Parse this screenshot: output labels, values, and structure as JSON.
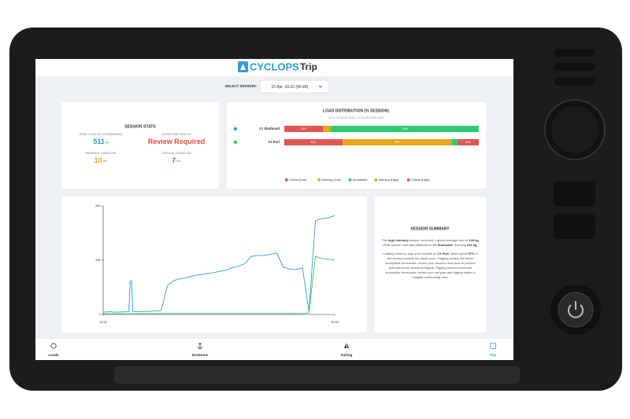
{
  "header": {
    "logo": "CYCLOPS",
    "title": "Trip"
  },
  "session_select": {
    "label": "SELECT SESSION:",
    "value": "10 Apr, 10:22 (40 kB)"
  },
  "stats": {
    "title": "SESSION STATS",
    "items": [
      {
        "label": "PEAK LOAD (V1 STARBOARD)",
        "value": 511,
        "unit": "kg",
        "color": "#2a9fd6"
      },
      {
        "label": "DOCKTUNE STATUS",
        "value": "Review Required",
        "color": "#e74c3c"
      },
      {
        "label": "WARNING DURATION",
        "value": 10,
        "unit": "min",
        "color": "#f0a30a"
      },
      {
        "label": "CRITICAL DURATION",
        "value": 7,
        "unit": "min",
        "color": "#e74c3c"
      }
    ]
  },
  "chart_data": [
    {
      "type": "stacked_bar",
      "title": "LOAD DISTRIBUTION (% SESSION)",
      "subtitle": "TAP A SENSOR ROW TO CONFIGURE DIAL",
      "categories": [
        "V1 Starboard",
        "V1 Port"
      ],
      "marker_colors": [
        "#2a9fd6",
        "#2ecc71"
      ],
      "xlim": [
        0,
        100
      ],
      "series": [
        {
          "name": "Critical (Low)",
          "color": "#e05555",
          "values": [
            20,
            30
          ],
          "value_labels": [
            "20%",
            "30%"
          ]
        },
        {
          "name": "Warning (Low)",
          "color": "#e6a817",
          "values": [
            4,
            56
          ],
          "value_labels": [
            null,
            "56%"
          ]
        },
        {
          "name": "Acceptable",
          "color": "#2ecc71",
          "values": [
            76,
            3
          ],
          "value_labels": [
            "76%",
            null
          ]
        },
        {
          "name": "Warning (High)",
          "color": "#e6a817",
          "values": [
            0,
            0
          ],
          "value_labels": [
            null,
            null
          ]
        },
        {
          "name": "Critical (High)",
          "color": "#e05555",
          "values": [
            0,
            11
          ],
          "value_labels": [
            null,
            "11%"
          ]
        }
      ]
    },
    {
      "type": "line",
      "x": [
        622,
        622.5,
        623,
        623.5,
        624,
        624.1,
        624.2,
        624.3,
        624.5,
        625,
        625.5,
        626,
        626.5,
        627,
        627.5,
        628,
        628.5,
        629,
        629.5,
        630,
        630.5,
        631,
        631.5,
        632,
        632.5,
        633,
        633.5,
        634,
        634.5,
        635,
        635.5,
        636,
        636.5,
        637,
        637.5,
        638,
        638.5,
        639,
        639.5,
        640
      ],
      "xlim": [
        622,
        640
      ],
      "xticks": [
        {
          "value": 622,
          "label": "10:22"
        },
        {
          "value": 640,
          "label": "10:40"
        }
      ],
      "ylim": [
        0,
        561
      ],
      "yticks": [
        0,
        281,
        561
      ],
      "series": [
        {
          "color": "#2a9fd6",
          "values": [
            12,
            14,
            12,
            13,
            14,
            170,
            175,
            15,
            14,
            15,
            16,
            18,
            20,
            150,
            175,
            185,
            190,
            200,
            205,
            210,
            215,
            222,
            228,
            240,
            250,
            262,
            300,
            305,
            305,
            310,
            318,
            245,
            235,
            232,
            240,
            15,
            485,
            495,
            500,
            511
          ]
        },
        {
          "color": "#2ecc71",
          "values": [
            4,
            4,
            4,
            4,
            4,
            4,
            4,
            4,
            4,
            4,
            4,
            4,
            4,
            4,
            4,
            4,
            4,
            4,
            4,
            4,
            4,
            4,
            4,
            4,
            4,
            4,
            4,
            4,
            4,
            4,
            4,
            4,
            4,
            4,
            5,
            8,
            300,
            290,
            285,
            282
          ]
        }
      ]
    }
  ],
  "summary": {
    "title": "SESSION SUMMARY",
    "paragraphs": [
      [
        {
          "text": "This "
        },
        {
          "text": "high intensity",
          "bold": true
        },
        {
          "text": " session recorded a global average load of "
        },
        {
          "text": "128 kg",
          "bold": true
        },
        {
          "text": ". Peak system load was attributed to "
        },
        {
          "text": "V1 Starboard",
          "bold": true
        },
        {
          "text": ", reaching "
        },
        {
          "text": "511 kg",
          "bold": true
        },
        {
          "text": "."
        }
      ],
      [
        {
          "text": "Loading variance was most notable on "
        },
        {
          "text": "V1 Port",
          "bold": true
        },
        {
          "text": ", which spent "
        },
        {
          "text": "97%",
          "bold": true
        },
        {
          "text": " of the session outside the target zone. Rigging tension fell below acceptable thresholds; review your vessel's dock tune to prevent potential future structural fatigue. Rigging tension exceeded acceptable thresholds; review your sail plan and rigging status to mitigate overloading risks."
        }
      ]
    ]
  },
  "nav": {
    "items": [
      "Loads",
      "Docktune",
      "Sailing",
      "Trip"
    ],
    "active": 3
  }
}
